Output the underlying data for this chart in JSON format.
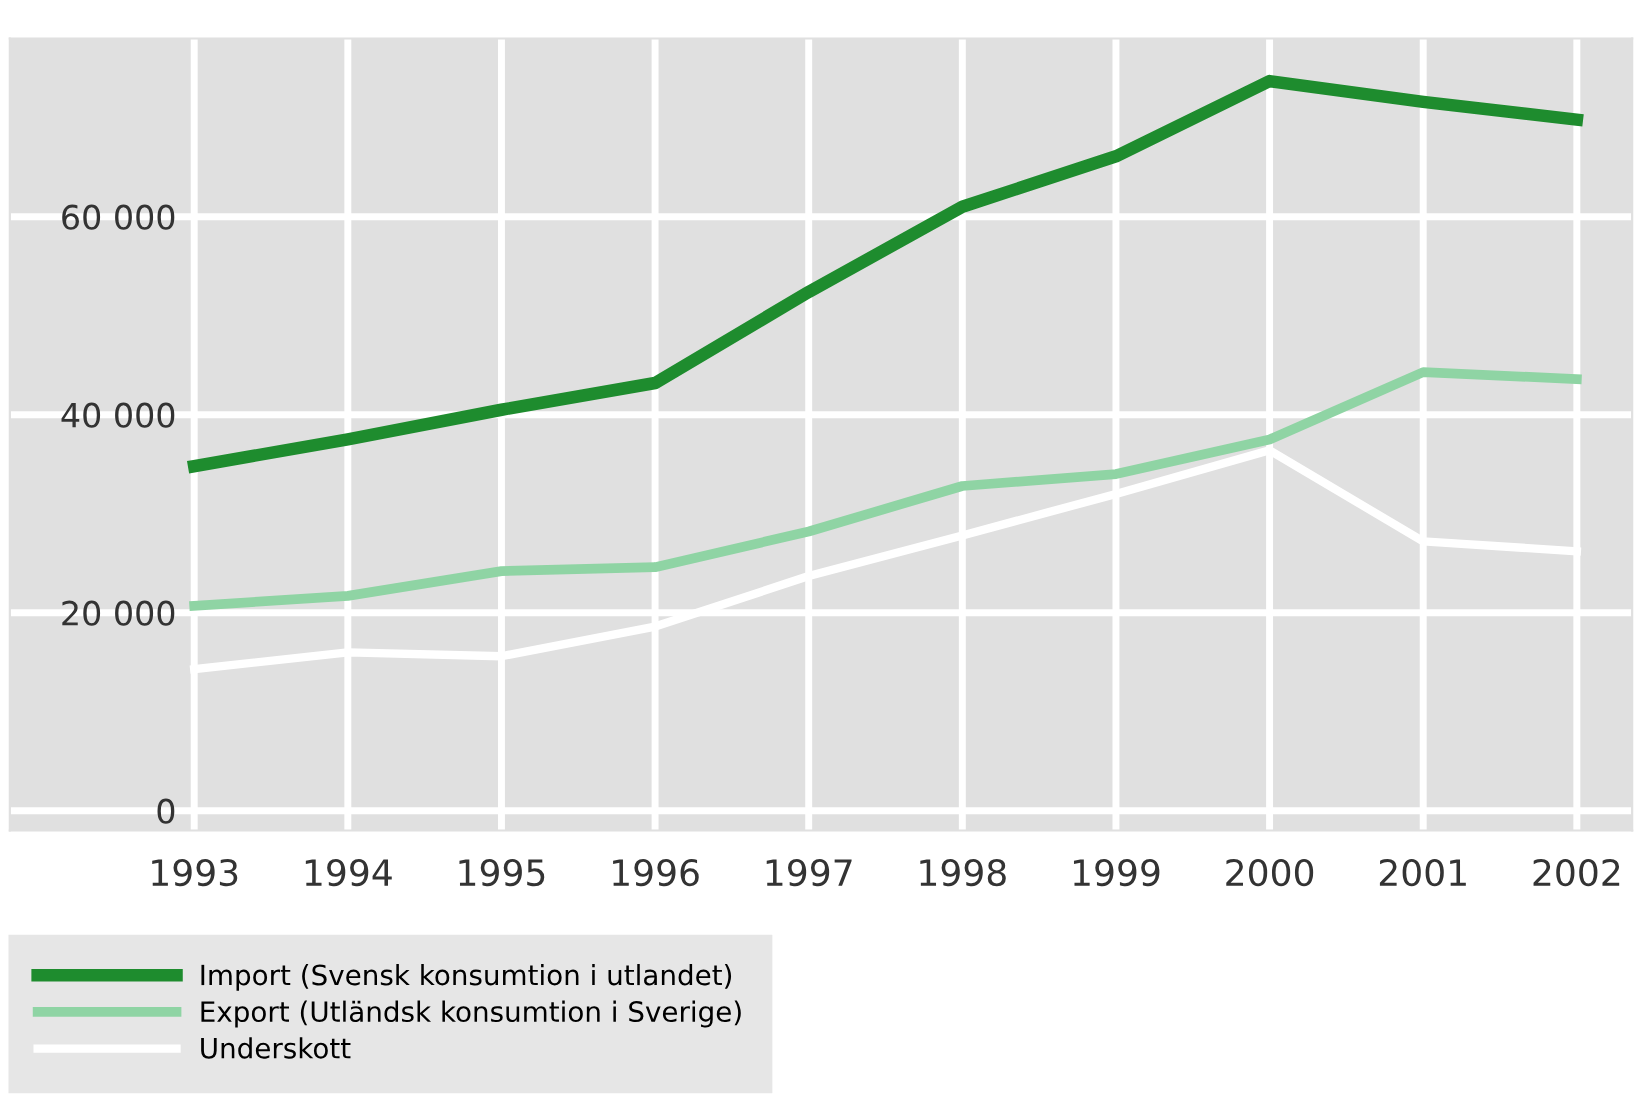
{
  "chart_data": {
    "type": "line",
    "x": [
      1993,
      1994,
      1995,
      1996,
      1997,
      1998,
      1999,
      2000,
      2001,
      2002
    ],
    "series": [
      {
        "name": "Import (Svensk konsumtion i utlandet)",
        "color": "#1e8c2e",
        "values": [
          34800,
          37500,
          40500,
          43200,
          52400,
          61000,
          66100,
          73700,
          71600,
          69800
        ]
      },
      {
        "name": "Export (Utländsk konsumtion i Sverige)",
        "color": "#8fd4a4",
        "values": [
          20700,
          21700,
          24200,
          24600,
          28200,
          32800,
          34000,
          37500,
          44300,
          43600
        ]
      },
      {
        "name": "Underskott",
        "color": "#ffffff",
        "values": [
          14300,
          16000,
          15600,
          18600,
          23700,
          27800,
          32000,
          36400,
          27200,
          26200
        ]
      }
    ],
    "xlim": [
      1991.8,
      2002.36
    ],
    "xticks": [
      1993,
      1994,
      1995,
      1996,
      1997,
      1998,
      1999,
      2000,
      2001,
      2002
    ],
    "ylim": [
      -2000,
      78000
    ],
    "yticks": [
      {
        "value": 0,
        "label": "0"
      },
      {
        "value": 20000,
        "label": "20 000"
      },
      {
        "value": 40000,
        "label": "40 000"
      },
      {
        "value": 60000,
        "label": "60 000"
      }
    ],
    "grid": true,
    "legend": "bottom left",
    "marker": "none",
    "line_style": "solid"
  }
}
